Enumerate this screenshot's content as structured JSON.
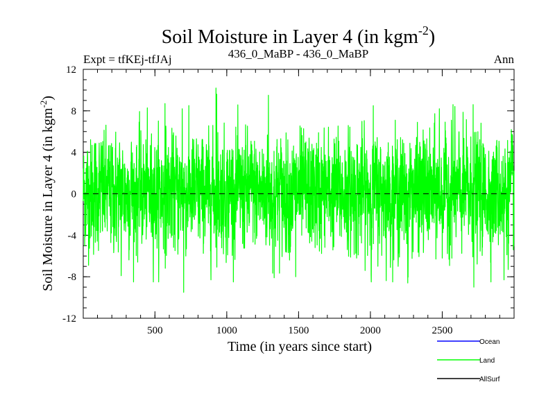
{
  "chart_data": {
    "type": "line",
    "title": "Soil Moisture in Layer 4 (in kgm",
    "title_sup": "-2",
    "title_close": ")",
    "subtitle_left": "Expt = tfKEj-tfJAj",
    "subtitle_center": "436_0_MaBP - 436_0_MaBP",
    "subtitle_right": "Ann",
    "xlabel": "Time (in years since start)",
    "ylabel": "Soil Moisture in Layer 4 (in kgm",
    "ylabel_sup": "-2",
    "ylabel_close": ")",
    "xlim": [
      1,
      3000
    ],
    "ylim": [
      -12,
      12
    ],
    "xticks": [
      500,
      1000,
      1500,
      2000,
      2500
    ],
    "yticks": [
      -12,
      -8,
      -4,
      0,
      4,
      8,
      12
    ],
    "x_minor_step": 100,
    "y_minor_step": 1,
    "zero_line": "dashed",
    "n_points": 3000,
    "land_series": {
      "name": "Land",
      "envelope_max": 10.2,
      "envelope_min": -9.5,
      "typical_range": [
        -4.5,
        6
      ],
      "peaks": [
        {
          "x": 925,
          "y": 10.2
        },
        {
          "x": 1290,
          "y": 9.5
        },
        {
          "x": 930,
          "y": 9.6
        },
        {
          "x": 570,
          "y": 8.7
        },
        {
          "x": 690,
          "y": 8.2
        },
        {
          "x": 2020,
          "y": 8.5
        },
        {
          "x": 2480,
          "y": 8.2
        },
        {
          "x": 2575,
          "y": 8.6
        },
        {
          "x": 2715,
          "y": 8.6
        },
        {
          "x": 2930,
          "y": 7.6
        }
      ],
      "troughs": [
        {
          "x": 700,
          "y": -9.5
        },
        {
          "x": 2720,
          "y": -9.0
        },
        {
          "x": 2930,
          "y": -8.3
        },
        {
          "x": 265,
          "y": -7.9
        },
        {
          "x": 1330,
          "y": -8.1
        },
        {
          "x": 1480,
          "y": -8.0
        },
        {
          "x": 2005,
          "y": -7.8
        },
        {
          "x": 2260,
          "y": -8.6
        }
      ]
    },
    "series": [
      {
        "name": "Ocean",
        "color": "#0000ff"
      },
      {
        "name": "Land",
        "color": "#00ff00"
      },
      {
        "name": "AllSurf",
        "color": "#000000"
      }
    ],
    "legend_placement": "bottom-right"
  }
}
